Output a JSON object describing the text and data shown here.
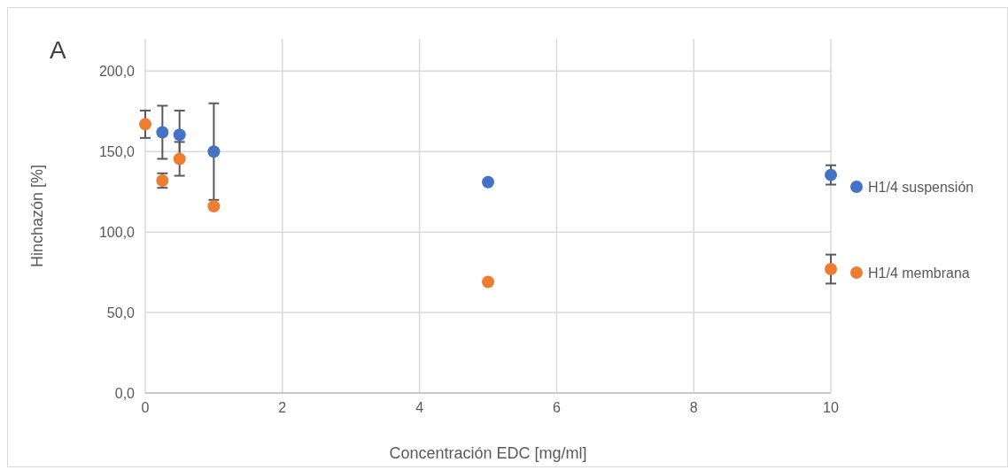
{
  "chart_data": {
    "type": "scatter",
    "xlabel": "Concentración EDC [mg/ml]",
    "ylabel": "Hinchazón [%]",
    "annotations": [
      "A"
    ],
    "x": [
      0,
      0.25,
      0.5,
      1,
      5,
      10
    ],
    "series": [
      {
        "name": "H1/4 suspensión",
        "color": "#4472c4",
        "values": [
          null,
          162,
          160.5,
          150,
          131,
          135.5
        ],
        "errors": [
          null,
          16.5,
          15,
          30,
          null,
          6
        ]
      },
      {
        "name": "H1/4 membrana",
        "color": "#ed7d31",
        "values": [
          167,
          132,
          145.5,
          116,
          69,
          77
        ],
        "errors": [
          8.5,
          4.5,
          10.5,
          null,
          null,
          9
        ]
      }
    ],
    "xlim": [
      0,
      10
    ],
    "xticks": [
      0,
      2,
      4,
      6,
      8,
      10
    ],
    "ylim": [
      0,
      220
    ],
    "yticks": [
      {
        "value": 0,
        "label": "0,0"
      },
      {
        "value": 50,
        "label": "50,0"
      },
      {
        "value": 100,
        "label": "100,0"
      },
      {
        "value": 150,
        "label": "150,0"
      },
      {
        "value": 200,
        "label": "200,0"
      }
    ],
    "grid": true,
    "legend": "right",
    "marker": "circle"
  }
}
